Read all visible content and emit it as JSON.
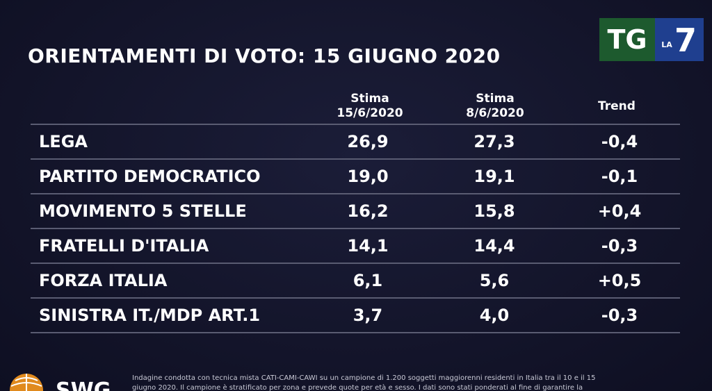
{
  "title": "ORIENTAMENTI DI VOTO: 15 GIUGNO 2020",
  "logo": {
    "text_left": "TG",
    "text_small": "LA",
    "text_right": "7",
    "icon": "tg-la7-logo"
  },
  "columns": {
    "col1": {
      "line1": "Stima",
      "line2": "15/6/2020"
    },
    "col2": {
      "line1": "Stima",
      "line2": "8/6/2020"
    },
    "col3": {
      "line1": "Trend"
    }
  },
  "rows": [
    {
      "party": "LEGA",
      "stima1": "26,9",
      "stima2": "27,3",
      "trend": "-0,4"
    },
    {
      "party": "PARTITO DEMOCRATICO",
      "stima1": "19,0",
      "stima2": "19,1",
      "trend": "-0,1"
    },
    {
      "party": "MOVIMENTO 5 STELLE",
      "stima1": "16,2",
      "stima2": "15,8",
      "trend": "+0,4"
    },
    {
      "party": "FRATELLI D'ITALIA",
      "stima1": "14,1",
      "stima2": "14,4",
      "trend": "-0,3"
    },
    {
      "party": "FORZA ITALIA",
      "stima1": "6,1",
      "stima2": "5,6",
      "trend": "+0,5"
    },
    {
      "party": "SINISTRA IT./MDP ART.1",
      "stima1": "3,7",
      "stima2": "4,0",
      "trend": "-0,3"
    }
  ],
  "footer": {
    "brand": "SWG",
    "line1": "Indagine condotta con tecnica mista CATI-CAMI-CAWI su un campione di 1.200 soggetti maggiorenni residenti in Italia tra il 10 e il 15",
    "line2": "giugno 2020. Il campione è stratificato per zona e prevede quote per età e sesso. I dati sono stati ponderati al fine di garantire la"
  },
  "colors": {
    "background": "#14152c",
    "divider": "#5a5c72",
    "logo_green": "#1d5a2e",
    "logo_blue": "#1f3f8f"
  }
}
